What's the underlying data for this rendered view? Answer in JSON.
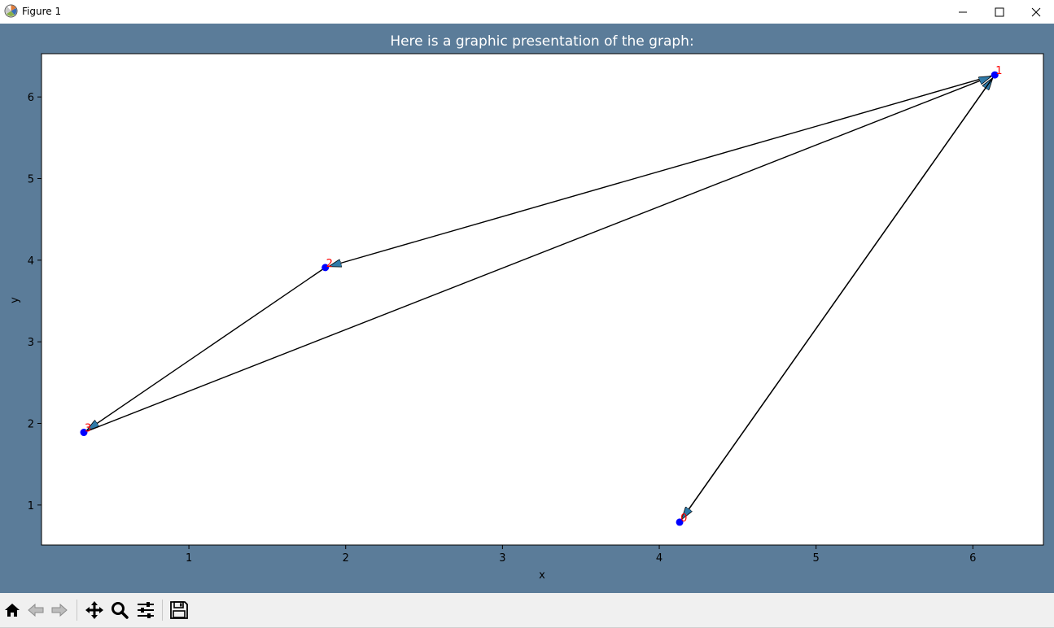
{
  "window": {
    "title": "Figure 1",
    "app_icon": "matplotlib-icon",
    "controls": [
      "minimize-icon",
      "maximize-icon",
      "close-icon"
    ]
  },
  "toolbar": {
    "buttons": [
      "home-icon",
      "back-arrow-icon",
      "forward-arrow-icon",
      "pan-move-icon",
      "zoom-magnifier-icon",
      "configure-subplots-icon",
      "save-floppy-icon"
    ]
  },
  "colors": {
    "figure_bg": "#5b7c99",
    "node": "#0000ff",
    "node_label": "#ff0000",
    "arrow_fill": "#2f7aa8"
  },
  "chart_data": {
    "type": "scatter",
    "title": "Here is a graphic presentation of the graph:",
    "xlabel": "x",
    "ylabel": "y",
    "xlim": [
      0.06,
      6.45
    ],
    "ylim": [
      0.51,
      6.53
    ],
    "xticks": [
      1,
      2,
      3,
      4,
      5,
      6
    ],
    "yticks": [
      1,
      2,
      3,
      4,
      5,
      6
    ],
    "grid": false,
    "nodes": [
      {
        "label": "0",
        "x": 4.13,
        "y": 0.79
      },
      {
        "label": "1",
        "x": 6.14,
        "y": 6.27
      },
      {
        "label": "2",
        "x": 1.87,
        "y": 3.91
      },
      {
        "label": "3",
        "x": 0.33,
        "y": 1.89
      }
    ],
    "edges": [
      {
        "from": "0",
        "to": "1"
      },
      {
        "from": "1",
        "to": "0"
      },
      {
        "from": "1",
        "to": "2"
      },
      {
        "from": "2",
        "to": "3"
      },
      {
        "from": "3",
        "to": "1"
      }
    ]
  }
}
